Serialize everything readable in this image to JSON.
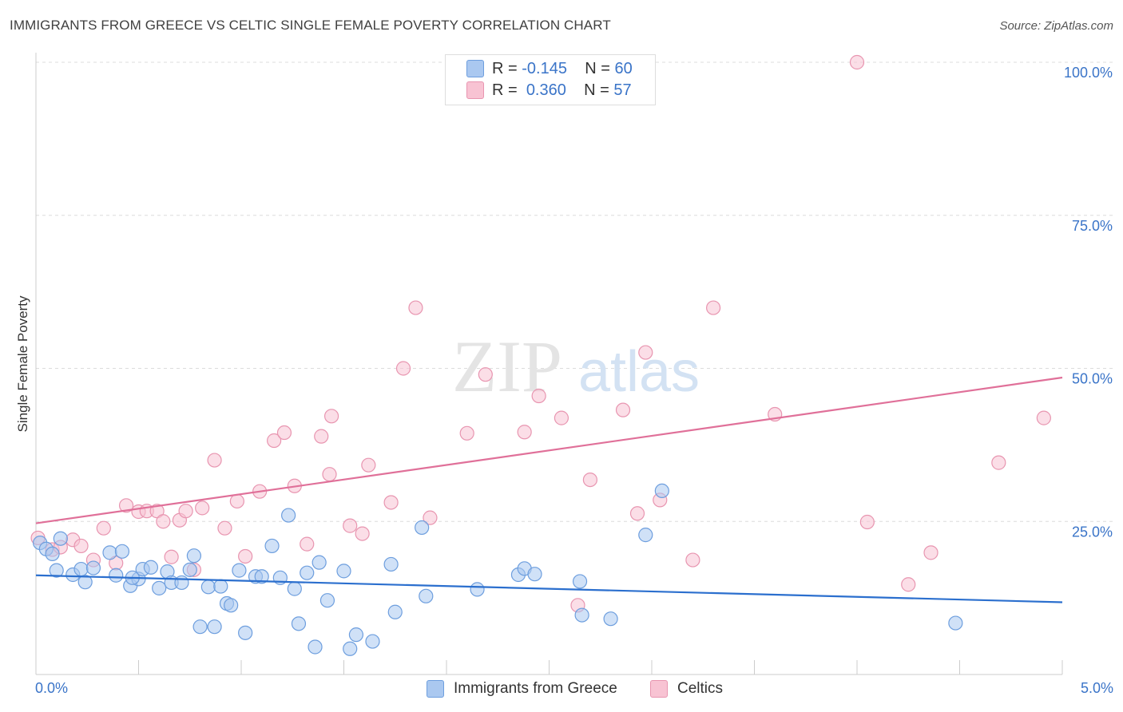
{
  "header": {
    "title": "IMMIGRANTS FROM GREECE VS CELTIC SINGLE FEMALE POVERTY CORRELATION CHART",
    "source": "Source: ZipAtlas.com"
  },
  "watermark": {
    "zip": "ZIP",
    "atlas": "atlas"
  },
  "stats": {
    "greece": {
      "r_label": "R = ",
      "r_value": "-0.145",
      "n_label": "N = ",
      "n_value": "60"
    },
    "celtic": {
      "r_label": "R = ",
      "r_value": "0.360",
      "n_label": "N = ",
      "n_value": "57"
    }
  },
  "legend": {
    "greece": "Immigrants from Greece",
    "celtic": "Celtics"
  },
  "colors": {
    "greece_fill": "#aac8f0",
    "greece_stroke": "#6d9ede",
    "greece_line": "#2b6fce",
    "celtic_fill": "#f8c3d3",
    "celtic_stroke": "#e895b0",
    "celtic_line": "#e07099",
    "tick_text": "#3a74c8",
    "grid": "#dcdcdc"
  },
  "chart_data": {
    "type": "scatter",
    "title": "IMMIGRANTS FROM GREECE VS CELTIC SINGLE FEMALE POVERTY CORRELATION CHART",
    "xlabel": "",
    "ylabel": "Single Female Poverty",
    "xlim": [
      0,
      5
    ],
    "ylim": [
      0,
      100
    ],
    "x_tick_labels": [
      "0.0%",
      "5.0%"
    ],
    "y_ticks": [
      25,
      50,
      75,
      100
    ],
    "y_tick_labels": [
      "25.0%",
      "50.0%",
      "75.0%",
      "100.0%"
    ],
    "grid": true,
    "legend_position": "bottom-center",
    "series": [
      {
        "name": "Immigrants from Greece",
        "r": -0.145,
        "n": 60,
        "trend": [
          [
            0,
            16.2
          ],
          [
            5,
            11.8
          ]
        ],
        "points": [
          [
            0.02,
            21.5
          ],
          [
            0.05,
            20.5
          ],
          [
            0.08,
            19.7
          ],
          [
            0.1,
            17.0
          ],
          [
            0.12,
            22.2
          ],
          [
            0.18,
            16.3
          ],
          [
            0.22,
            17.2
          ],
          [
            0.24,
            15.1
          ],
          [
            0.28,
            17.4
          ],
          [
            0.36,
            19.9
          ],
          [
            0.39,
            16.2
          ],
          [
            0.42,
            20.1
          ],
          [
            0.46,
            14.5
          ],
          [
            0.5,
            15.6
          ],
          [
            0.52,
            17.2
          ],
          [
            0.56,
            17.5
          ],
          [
            0.6,
            14.1
          ],
          [
            0.64,
            16.8
          ],
          [
            0.66,
            15.0
          ],
          [
            0.71,
            15.0
          ],
          [
            0.75,
            17.1
          ],
          [
            0.77,
            19.4
          ],
          [
            0.8,
            7.8
          ],
          [
            0.84,
            14.3
          ],
          [
            0.87,
            7.8
          ],
          [
            0.9,
            14.4
          ],
          [
            0.93,
            11.6
          ],
          [
            0.95,
            11.3
          ],
          [
            0.99,
            17.0
          ],
          [
            1.02,
            6.8
          ],
          [
            1.07,
            16.0
          ],
          [
            1.1,
            16.0
          ],
          [
            1.15,
            21.0
          ],
          [
            1.19,
            15.8
          ],
          [
            1.23,
            26.0
          ],
          [
            1.26,
            14.0
          ],
          [
            1.28,
            8.3
          ],
          [
            1.32,
            16.6
          ],
          [
            1.36,
            4.5
          ],
          [
            1.38,
            18.3
          ],
          [
            1.42,
            12.1
          ],
          [
            1.5,
            16.9
          ],
          [
            1.53,
            4.2
          ],
          [
            1.56,
            6.5
          ],
          [
            1.64,
            5.4
          ],
          [
            1.73,
            18.0
          ],
          [
            1.75,
            10.2
          ],
          [
            1.88,
            24.0
          ],
          [
            1.9,
            12.8
          ],
          [
            2.15,
            13.9
          ],
          [
            2.35,
            16.3
          ],
          [
            2.38,
            17.3
          ],
          [
            2.43,
            16.4
          ],
          [
            2.65,
            15.2
          ],
          [
            2.66,
            9.7
          ],
          [
            2.8,
            9.1
          ],
          [
            2.97,
            22.8
          ],
          [
            3.05,
            30.0
          ],
          [
            4.48,
            8.4
          ],
          [
            0.47,
            15.8
          ]
        ]
      },
      {
        "name": "Celtics",
        "r": 0.36,
        "n": 57,
        "trend": [
          [
            0,
            24.7
          ],
          [
            5,
            48.5
          ]
        ],
        "points": [
          [
            0.01,
            22.3
          ],
          [
            0.08,
            20.4
          ],
          [
            0.12,
            20.8
          ],
          [
            0.18,
            22.0
          ],
          [
            0.22,
            21.0
          ],
          [
            0.28,
            18.7
          ],
          [
            0.33,
            23.9
          ],
          [
            0.39,
            18.2
          ],
          [
            0.44,
            27.6
          ],
          [
            0.5,
            26.6
          ],
          [
            0.54,
            26.7
          ],
          [
            0.59,
            26.7
          ],
          [
            0.62,
            25.0
          ],
          [
            0.66,
            19.2
          ],
          [
            0.7,
            25.2
          ],
          [
            0.73,
            26.7
          ],
          [
            0.77,
            17.1
          ],
          [
            0.81,
            27.2
          ],
          [
            0.87,
            35.0
          ],
          [
            0.92,
            23.9
          ],
          [
            0.98,
            28.3
          ],
          [
            1.02,
            19.3
          ],
          [
            1.09,
            29.9
          ],
          [
            1.16,
            38.2
          ],
          [
            1.21,
            39.5
          ],
          [
            1.26,
            30.8
          ],
          [
            1.32,
            21.3
          ],
          [
            1.39,
            38.9
          ],
          [
            1.43,
            32.7
          ],
          [
            1.44,
            42.2
          ],
          [
            1.53,
            24.3
          ],
          [
            1.59,
            23.0
          ],
          [
            1.62,
            34.2
          ],
          [
            1.73,
            28.1
          ],
          [
            1.79,
            50.0
          ],
          [
            1.85,
            59.9
          ],
          [
            1.92,
            25.6
          ],
          [
            2.1,
            39.4
          ],
          [
            2.19,
            49.0
          ],
          [
            2.38,
            39.6
          ],
          [
            2.45,
            45.5
          ],
          [
            2.56,
            41.9
          ],
          [
            2.64,
            11.3
          ],
          [
            2.7,
            31.8
          ],
          [
            2.86,
            43.2
          ],
          [
            2.93,
            26.3
          ],
          [
            2.97,
            52.6
          ],
          [
            3.04,
            28.5
          ],
          [
            3.2,
            18.7
          ],
          [
            3.3,
            59.9
          ],
          [
            3.6,
            42.5
          ],
          [
            4.0,
            100.0
          ],
          [
            4.05,
            24.9
          ],
          [
            4.25,
            14.7
          ],
          [
            4.36,
            19.9
          ],
          [
            4.69,
            34.6
          ],
          [
            4.91,
            41.9
          ]
        ]
      }
    ]
  }
}
